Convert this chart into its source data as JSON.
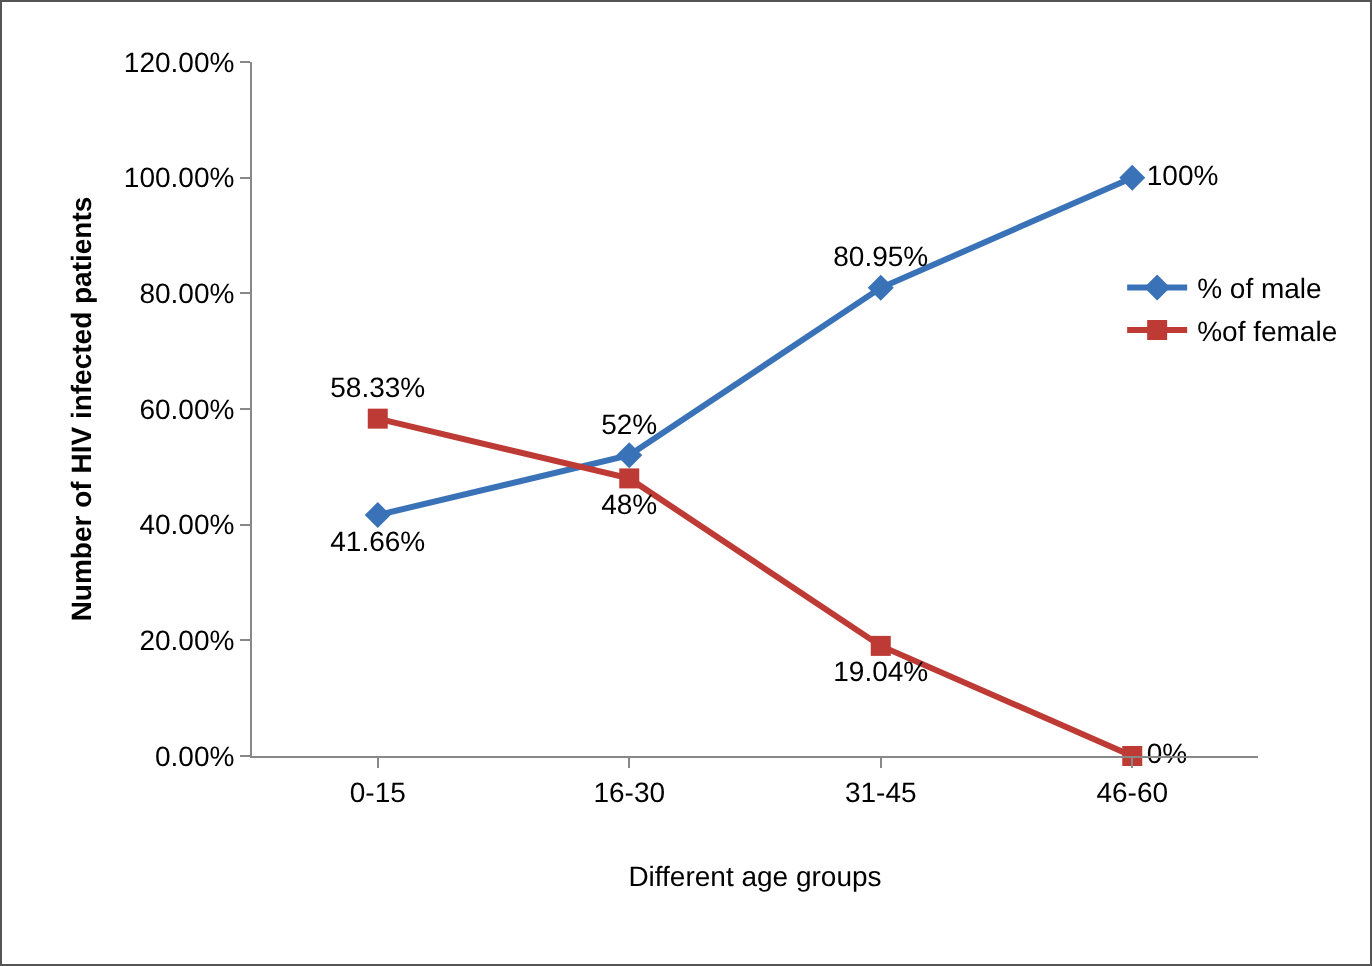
{
  "chart_data": {
    "type": "line",
    "xlabel": "Different age groups",
    "ylabel": "Number of HIV infected patients",
    "categories": [
      "0-15",
      "16-30",
      "31-45",
      "46-60"
    ],
    "series": [
      {
        "name": "% of male",
        "color": "#3a72b8",
        "marker": "diamond",
        "values": [
          41.66,
          52,
          80.95,
          100
        ],
        "value_labels": [
          "41.66%",
          "52%",
          "80.95%",
          "100%"
        ]
      },
      {
        "name": "%of female",
        "color": "#be3a34",
        "marker": "square",
        "values": [
          58.33,
          48,
          19.04,
          0
        ],
        "value_labels": [
          "58.33%",
          "48%",
          "19.04%",
          "0%"
        ]
      }
    ],
    "ylim": [
      0,
      120
    ],
    "yticks": [
      {
        "value": 0,
        "label": "0.00%"
      },
      {
        "value": 20,
        "label": "20.00%"
      },
      {
        "value": 40,
        "label": "40.00%"
      },
      {
        "value": 60,
        "label": "60.00%"
      },
      {
        "value": 80,
        "label": "80.00%"
      },
      {
        "value": 100,
        "label": "100.00%"
      },
      {
        "value": 120,
        "label": "120.00%"
      }
    ],
    "grid": false,
    "legend": "right",
    "line_style": "solid"
  }
}
